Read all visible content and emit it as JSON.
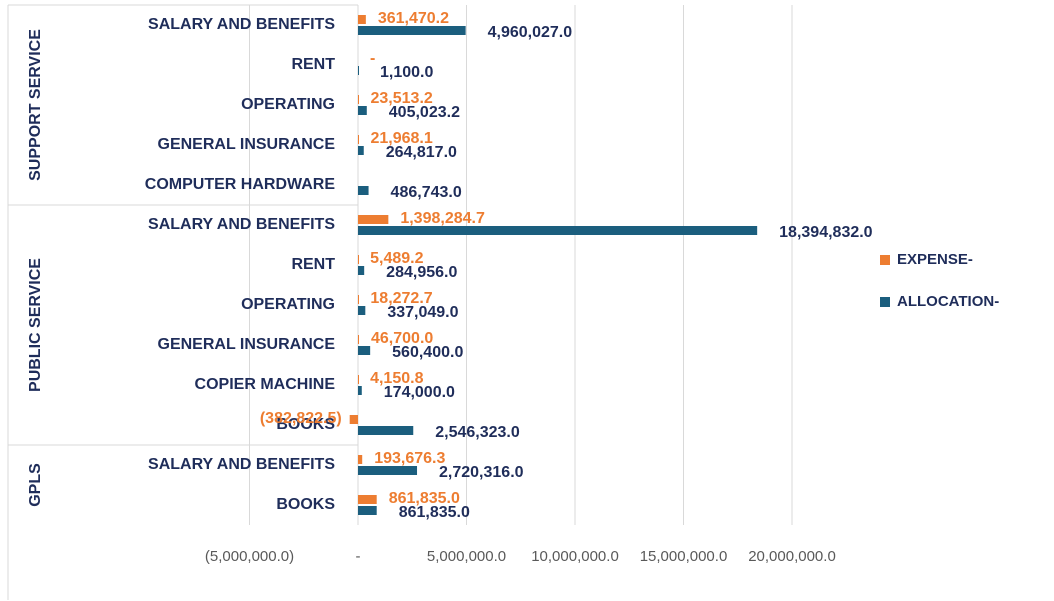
{
  "chart_data": {
    "type": "grouped_hbar",
    "groups": [
      {
        "name": "SUPPORT SERVICE",
        "categories": [
          "SALARY AND BENEFITS",
          "RENT",
          "OPERATING",
          "GENERAL INSURANCE",
          "COMPUTER HARDWARE"
        ]
      },
      {
        "name": "PUBLIC SERVICE",
        "categories": [
          "SALARY AND BENEFITS",
          "RENT",
          "OPERATING",
          "GENERAL INSURANCE",
          "COPIER MACHINE",
          "BOOKS"
        ]
      },
      {
        "name": "GPLS",
        "categories": [
          "SALARY AND BENEFITS",
          "BOOKS"
        ]
      }
    ],
    "series": [
      {
        "name": "EXPENSE-",
        "color": "#ed7d31",
        "label_color": "#ed7d31",
        "values": [
          361470.2,
          0,
          23513.2,
          21968.1,
          null,
          1398284.7,
          5489.2,
          18272.7,
          46700.0,
          4150.8,
          -382822.5,
          193676.3,
          861835.0
        ],
        "value_labels": [
          "361,470.2",
          "-",
          "23,513.2",
          "21,968.1",
          null,
          "1,398,284.7",
          "5,489.2",
          "18,272.7",
          "46,700.0",
          "4,150.8",
          "(382,822.5)",
          "193,676.3",
          "861,835.0"
        ]
      },
      {
        "name": "ALLOCATION-",
        "color": "#1b5e7e",
        "label_color": "#1f2d5a",
        "values": [
          4960027.0,
          1100.0,
          405023.2,
          264817.0,
          486743.0,
          18394832.0,
          284956.0,
          337049.0,
          560400.0,
          174000.0,
          2546323.0,
          2720316.0,
          861835.0
        ],
        "value_labels": [
          "4,960,027.0",
          "1,100.0",
          "405,023.2",
          "264,817.0",
          "486,743.0",
          "18,394,832.0",
          "284,956.0",
          "337,049.0",
          "560,400.0",
          "174,000.0",
          "2,546,323.0",
          "2,720,316.0",
          "861,835.0"
        ]
      }
    ],
    "xlim": [
      -5000000,
      20000000
    ],
    "xticks": [
      {
        "value": -5000000,
        "label": "(5,000,000.0)"
      },
      {
        "value": 0,
        "label": "-"
      },
      {
        "value": 5000000,
        "label": "5,000,000.0"
      },
      {
        "value": 10000000,
        "label": "10,000,000.0"
      },
      {
        "value": 15000000,
        "label": "15,000,000.0"
      },
      {
        "value": 20000000,
        "label": "20,000,000.0"
      }
    ],
    "grid": true,
    "legend": "right"
  }
}
